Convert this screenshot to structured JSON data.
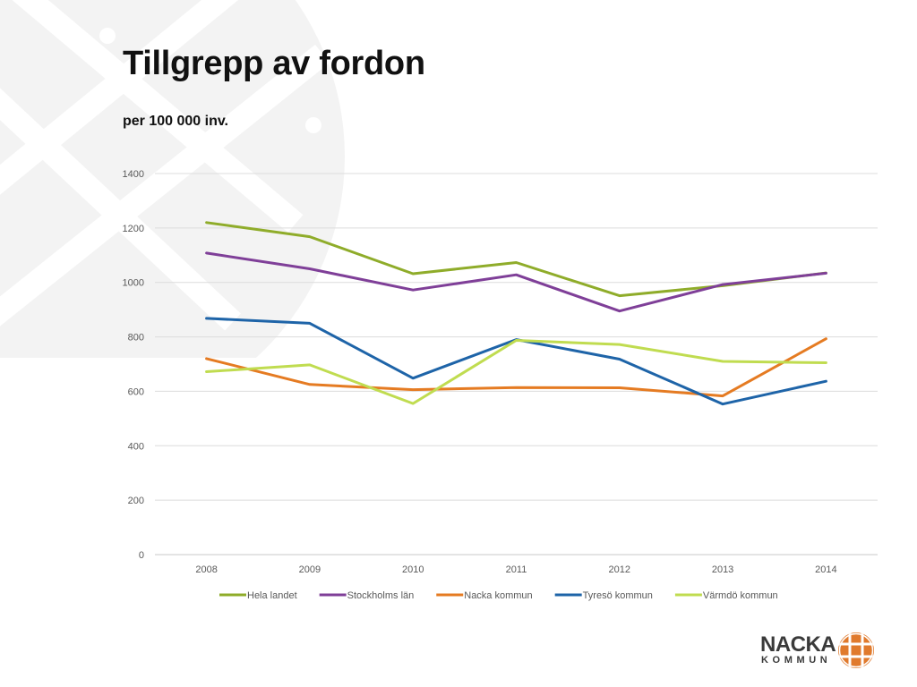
{
  "slide": {
    "title": "Tillgrepp av fordon",
    "subtitle": "per 100 000 inv.",
    "logo": {
      "name": "NACKA",
      "sub": "KOMMUN",
      "emblem": "nacka-emblem-icon",
      "emblem_color": "#e07a2d"
    }
  },
  "chart_data": {
    "type": "line",
    "title": "",
    "xlabel": "",
    "ylabel": "",
    "x": [
      "2008",
      "2009",
      "2010",
      "2011",
      "2012",
      "2013",
      "2014"
    ],
    "ylim": [
      0,
      1400
    ],
    "yticks": [
      0,
      200,
      400,
      600,
      800,
      1000,
      1200,
      1400
    ],
    "grid": true,
    "legend": "bottom",
    "series": [
      {
        "name": "Hela landet",
        "color": "#8fac2a",
        "values": [
          1220,
          1168,
          1032,
          1073,
          951,
          988,
          1035
        ]
      },
      {
        "name": "Stockholms län",
        "color": "#7f3f98",
        "values": [
          1108,
          1050,
          972,
          1028,
          895,
          992,
          1034
        ]
      },
      {
        "name": "Nacka kommun",
        "color": "#e57b22",
        "values": [
          720,
          625,
          606,
          614,
          613,
          583,
          793
        ]
      },
      {
        "name": "Tyresö kommun",
        "color": "#1e64a8",
        "values": [
          868,
          850,
          648,
          790,
          718,
          553,
          637
        ]
      },
      {
        "name": "Värmdö kommun",
        "color": "#c0dc50",
        "values": [
          672,
          697,
          555,
          787,
          772,
          710,
          705
        ]
      }
    ]
  }
}
